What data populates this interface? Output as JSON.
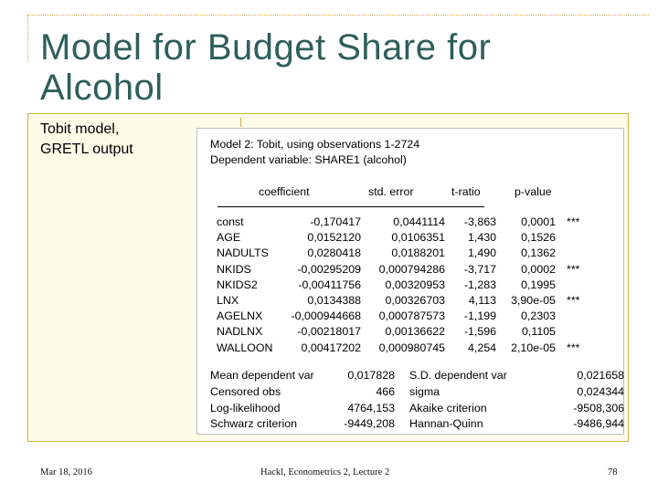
{
  "slide": {
    "title_line1": "Model for Budget Share for",
    "title_line2": "Alcohol",
    "left_label_line1": "Tobit model,",
    "left_label_line2": "GRETL output"
  },
  "gretl": {
    "header1": "Model 2: Tobit, using observations 1-2724",
    "header2": "Dependent variable: SHARE1 (alcohol)",
    "col_headers": {
      "coef": "coefficient",
      "se": "std. error",
      "t": "t-ratio",
      "p": "p-value"
    },
    "rows": [
      {
        "name": "const",
        "coef": "-0,170417",
        "se": "0,0441114",
        "t": "-3,863",
        "p": "0,0001",
        "stars": "***"
      },
      {
        "name": "AGE",
        "coef": "0,0152120",
        "se": "0,0106351",
        "t": "1,430",
        "p": "0,1526",
        "stars": ""
      },
      {
        "name": "NADULTS",
        "coef": "0,0280418",
        "se": "0,0188201",
        "t": "1,490",
        "p": "0,1362",
        "stars": ""
      },
      {
        "name": "NKIDS",
        "coef": "-0,00295209",
        "se": "0,000794286",
        "t": "-3,717",
        "p": "0,0002",
        "stars": "***"
      },
      {
        "name": "NKIDS2",
        "coef": "-0,00411756",
        "se": "0,00320953",
        "t": "-1,283",
        "p": "0,1995",
        "stars": ""
      },
      {
        "name": "LNX",
        "coef": "0,0134388",
        "se": "0,00326703",
        "t": "4,113",
        "p": "3,90e-05",
        "stars": "***"
      },
      {
        "name": "AGELNX",
        "coef": "-0,000944668",
        "se": "0,000787573",
        "t": "-1,199",
        "p": "0,2303",
        "stars": ""
      },
      {
        "name": "NADLNX",
        "coef": "-0,00218017",
        "se": "0,00136622",
        "t": "-1,596",
        "p": "0,1105",
        "stars": ""
      },
      {
        "name": "WALLOON",
        "coef": "0,00417202",
        "se": "0,000980745",
        "t": "4,254",
        "p": "2,10e-05",
        "stars": "***"
      }
    ],
    "stats": [
      {
        "l1": "Mean dependent var",
        "v1": "0,017828",
        "l2": "S.D. dependent var",
        "v2": "0,021658"
      },
      {
        "l1": "Censored obs",
        "v1": "466",
        "l2": "sigma",
        "v2": "0,024344"
      },
      {
        "l1": "Log-likelihood",
        "v1": "4764,153",
        "l2": "Akaike criterion",
        "v2": "-9508,306"
      },
      {
        "l1": "Schwarz criterion",
        "v1": "-9449,208",
        "l2": "Hannan-Quinn",
        "v2": "-9486,944"
      }
    ]
  },
  "footer": {
    "date": "Mar 18, 2016",
    "center": "Hackl, Econometrics 2, Lecture 2",
    "page": "78"
  }
}
